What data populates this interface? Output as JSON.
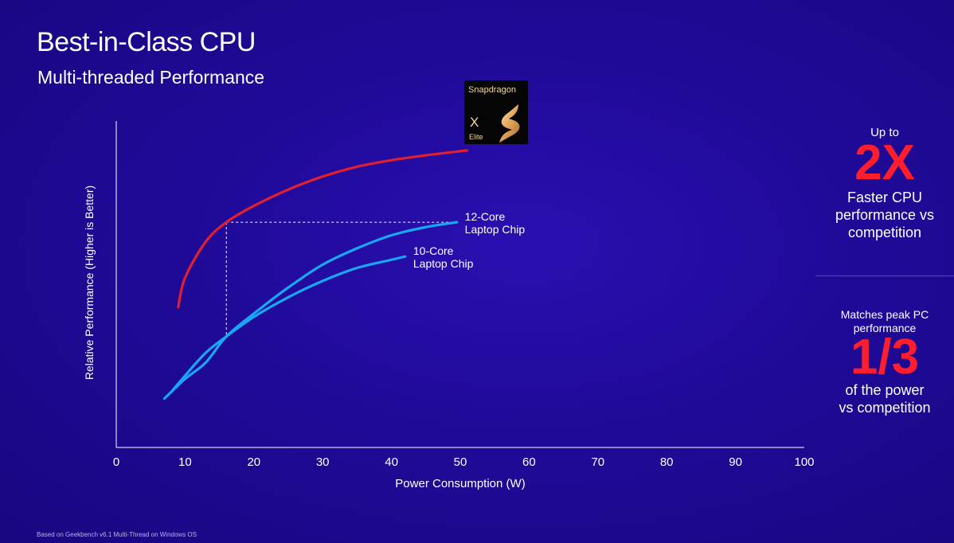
{
  "header": {
    "title": "Best-in-Class CPU",
    "subtitle": "Multi-threaded Performance"
  },
  "badge": {
    "brand": "Snapdragon",
    "model": "X",
    "tier": "Elite"
  },
  "side_stats": [
    {
      "prefix": "Up to",
      "value": "2X",
      "description": "Faster CPU\nperformance vs\ncompetition"
    },
    {
      "prefix": "Matches peak PC\nperformance",
      "value": "1/3",
      "description": "of the power\nvs competition"
    }
  ],
  "footnote": "Based on Geekbench v6.1 Multi-Thread on Windows OS",
  "colors": {
    "accent_red": "#ff1d2e",
    "series_red": "#e0202e",
    "series_blue": "#19a6f2"
  },
  "chart_data": {
    "type": "line",
    "xlabel": "Power Consumption (W)",
    "ylabel": "Relative Performance  (Higher is Better)",
    "xlim": [
      0,
      100
    ],
    "ylim": [
      0,
      100
    ],
    "xticks": [
      0,
      10,
      20,
      30,
      40,
      50,
      60,
      70,
      80,
      90,
      100
    ],
    "grid": false,
    "series": [
      {
        "name": "Snapdragon X Elite",
        "color": "#e0202e",
        "points": [
          [
            9,
            43
          ],
          [
            10,
            52
          ],
          [
            13,
            63
          ],
          [
            16,
            69
          ],
          [
            20,
            74
          ],
          [
            25,
            79
          ],
          [
            30,
            83
          ],
          [
            35,
            86
          ],
          [
            40,
            88
          ],
          [
            45,
            89.5
          ],
          [
            51,
            91
          ]
        ]
      },
      {
        "name": "12-Core\nLaptop Chip",
        "color": "#19a6f2",
        "points": [
          [
            7,
            15
          ],
          [
            10,
            21
          ],
          [
            13,
            26
          ],
          [
            16,
            34
          ],
          [
            20,
            41
          ],
          [
            25,
            49
          ],
          [
            30,
            56
          ],
          [
            35,
            61
          ],
          [
            40,
            65
          ],
          [
            45,
            67.5
          ],
          [
            49.5,
            69
          ]
        ]
      },
      {
        "name": "10-Core\nLaptop Chip",
        "color": "#19a6f2",
        "points": [
          [
            8,
            17
          ],
          [
            10,
            22
          ],
          [
            13,
            29
          ],
          [
            16,
            34
          ],
          [
            20,
            40
          ],
          [
            25,
            46
          ],
          [
            30,
            51
          ],
          [
            35,
            55
          ],
          [
            40,
            57.5
          ],
          [
            42,
            58.5
          ]
        ]
      }
    ],
    "annotations": [
      {
        "type": "dashed-reference",
        "from_x": 16,
        "to_x": 49.5,
        "y": 69
      }
    ]
  }
}
